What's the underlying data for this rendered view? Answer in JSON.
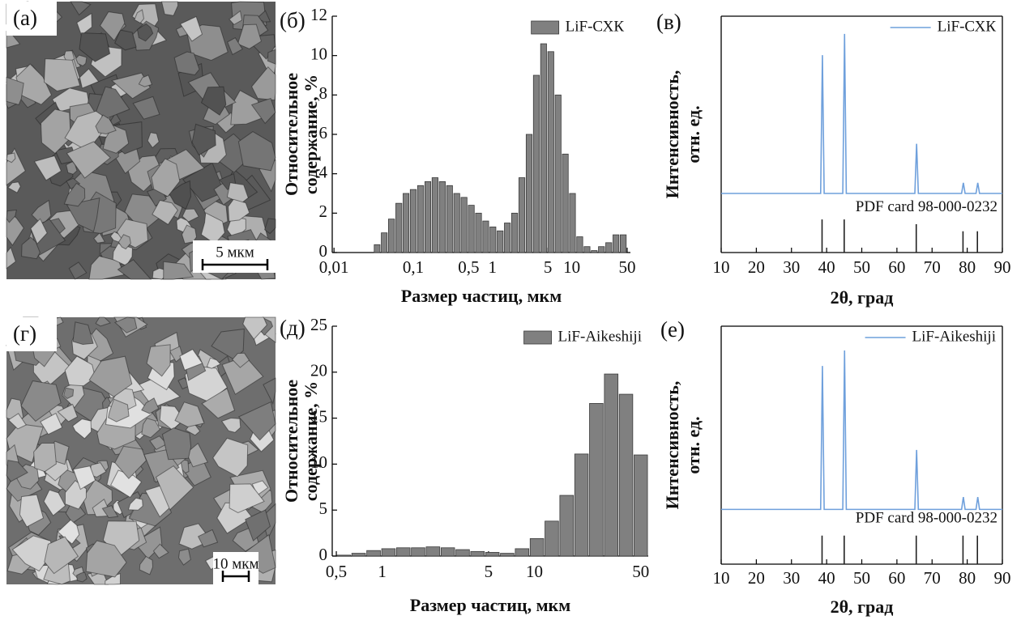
{
  "images": [
    {
      "label": "(а)",
      "scale_bar": "5 мкм"
    },
    {
      "label": "(г)",
      "scale_bar": "10 мкм"
    }
  ],
  "chart_data": [
    {
      "type": "bar",
      "panel_label": "(б)",
      "xlabel": "Размер частиц, мкм",
      "ylabel": [
        "Относительное",
        "содержание, %"
      ],
      "xscale": "log",
      "xlim": [
        0.0095,
        55
      ],
      "xticks": [
        {
          "value": 0.01,
          "label": "0,01"
        },
        {
          "value": 0.1,
          "label": "0,1"
        },
        {
          "value": 0.5,
          "label": "0,5"
        },
        1,
        5,
        10,
        50
      ],
      "ylim": [
        0,
        12
      ],
      "yticks": [
        0,
        2,
        4,
        6,
        8,
        10,
        12
      ],
      "legend": "upper right",
      "series": [
        {
          "name": "LiF-СХК",
          "color": "#808080",
          "x": [
            0.035,
            0.043,
            0.053,
            0.066,
            0.081,
            0.1,
            0.124,
            0.153,
            0.188,
            0.233,
            0.287,
            0.354,
            0.437,
            0.54,
            0.666,
            0.822,
            1.01,
            1.25,
            1.54,
            1.9,
            2.35,
            2.9,
            3.58,
            4.41,
            5.45,
            6.72,
            8.3,
            10.2,
            12.6,
            15.6,
            19.2,
            23.7,
            29.3,
            36.1,
            44.6
          ],
          "values": [
            0.4,
            1.0,
            1.7,
            2.5,
            3.0,
            3.2,
            3.4,
            3.6,
            3.8,
            3.6,
            3.4,
            3.0,
            2.8,
            2.4,
            2.0,
            1.6,
            1.3,
            1.1,
            1.5,
            2.0,
            3.8,
            6.0,
            9.0,
            10.6,
            10.2,
            8.0,
            5.0,
            3.0,
            0.8,
            0.3,
            0.1,
            0.3,
            0.5,
            0.9,
            0.9
          ]
        }
      ]
    },
    {
      "type": "line",
      "panel_label": "(в)",
      "xlabel": "2θ, град",
      "ylabel": [
        "Интенсивность,",
        "отн. ед."
      ],
      "xlim": [
        10,
        90
      ],
      "xticks": [
        10,
        20,
        30,
        40,
        50,
        60,
        70,
        80,
        90
      ],
      "ylim": [
        0,
        100
      ],
      "legend": "upper right",
      "series": [
        {
          "name": "LiF-СХК",
          "color": "#6fa0dc",
          "x": [
            10,
            38.3,
            38.8,
            39.3,
            44.6,
            45.1,
            45.6,
            65.1,
            65.6,
            66.1,
            78.4,
            78.9,
            79.4,
            82.5,
            83.0,
            83.5,
            90
          ],
          "values": [
            25,
            25,
            83.5,
            25,
            25,
            92.5,
            25,
            25,
            46,
            25,
            25,
            29.5,
            25,
            25,
            29.5,
            25,
            25
          ]
        }
      ],
      "reference": {
        "name": "PDF card 98-000-0232",
        "color": "#222222",
        "x": [
          38.7,
          45.0,
          65.5,
          78.8,
          82.9
        ],
        "values": [
          14,
          14,
          12,
          9,
          9
        ]
      }
    },
    {
      "type": "bar",
      "panel_label": "(д)",
      "xlabel": "Размер частиц, мкм",
      "ylabel": [
        "Относительное",
        "содержание, %"
      ],
      "xscale": "log",
      "xlim": [
        0.47,
        56
      ],
      "xticks": [
        {
          "value": 0.5,
          "label": "0,5"
        },
        1,
        5,
        10,
        50
      ],
      "ylim": [
        0,
        25
      ],
      "yticks": [
        0,
        5,
        10,
        15,
        20,
        25
      ],
      "legend": "upper right",
      "series": [
        {
          "name": "LiF-Aikeshiji",
          "color": "#808080",
          "x": [
            0.56,
            0.7,
            0.88,
            1.1,
            1.38,
            1.72,
            2.16,
            2.7,
            3.38,
            4.23,
            5.3,
            6.63,
            8.3,
            10.4,
            13,
            16.3,
            20.4,
            25.5,
            32,
            40,
            50
          ],
          "values": [
            0.1,
            0.3,
            0.6,
            0.8,
            0.9,
            0.9,
            1.0,
            0.9,
            0.7,
            0.5,
            0.4,
            0.3,
            0.8,
            1.9,
            3.8,
            6.6,
            11.1,
            16.6,
            19.8,
            17.6,
            11.0
          ]
        }
      ]
    },
    {
      "type": "line",
      "panel_label": "(е)",
      "xlabel": "2θ, град",
      "ylabel": [
        "Интенсивность,",
        "отн. ед."
      ],
      "xlim": [
        10,
        90
      ],
      "xticks": [
        10,
        20,
        30,
        40,
        50,
        60,
        70,
        80,
        90
      ],
      "ylim": [
        0,
        100
      ],
      "legend": "upper right",
      "series": [
        {
          "name": "LiF-Aikeshiji",
          "color": "#6fa0dc",
          "x": [
            10,
            38.3,
            38.8,
            39.3,
            44.6,
            45.1,
            45.6,
            65.1,
            65.6,
            66.1,
            78.4,
            78.9,
            79.4,
            82.5,
            83.0,
            83.5,
            90
          ],
          "values": [
            23,
            23,
            83.3,
            23,
            23,
            89.8,
            23,
            23,
            48,
            23,
            23,
            28.2,
            23,
            23,
            28.2,
            23,
            23
          ]
        }
      ],
      "reference": {
        "name": "PDF card 98-000-0232",
        "color": "#222222",
        "x": [
          38.7,
          45.0,
          65.5,
          78.8,
          82.9
        ],
        "values": [
          12,
          12,
          12,
          12,
          12
        ]
      }
    }
  ]
}
